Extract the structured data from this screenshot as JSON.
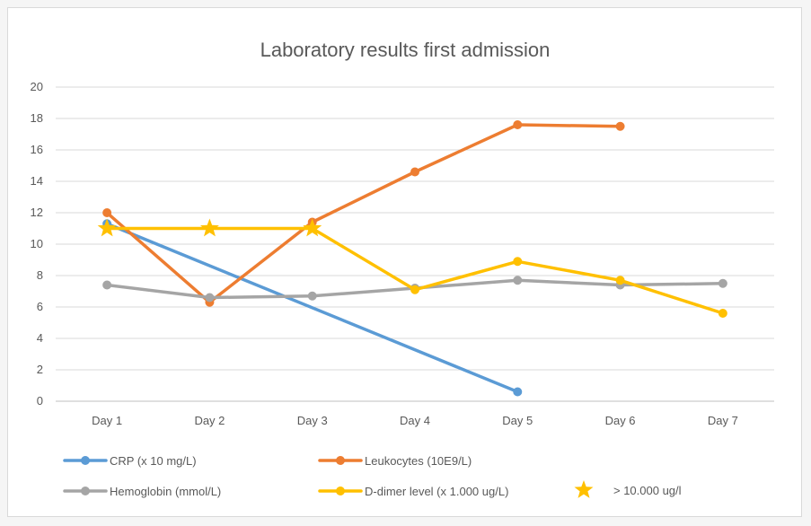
{
  "chart_data": {
    "type": "line",
    "title": "Laboratory results first admission",
    "categories": [
      "Day 1",
      "Day 2",
      "Day 3",
      "Day 4",
      "Day 5",
      "Day 6",
      "Day 7"
    ],
    "ylim": [
      0,
      20
    ],
    "yticks": [
      0,
      2,
      4,
      6,
      8,
      10,
      12,
      14,
      16,
      18,
      20
    ],
    "grid": true,
    "legend_position": "bottom",
    "series": [
      {
        "name": "CRP (x 10 mg/L)",
        "color": "#5b9bd5",
        "values": [
          11.3,
          null,
          null,
          null,
          0.6,
          null,
          null
        ]
      },
      {
        "name": "Leukocytes (10E9/L)",
        "color": "#ed7d31",
        "values": [
          12.0,
          6.3,
          11.4,
          14.6,
          17.6,
          17.5,
          null
        ]
      },
      {
        "name": "Hemoglobin (mmol/L)",
        "color": "#a5a5a5",
        "values": [
          7.4,
          6.6,
          6.7,
          7.2,
          7.7,
          7.4,
          7.5
        ]
      },
      {
        "name": "D-dimer level (x 1.000 ug/L)",
        "color": "#ffc000",
        "values": [
          11.0,
          11.0,
          11.0,
          7.1,
          8.9,
          7.7,
          5.6
        ],
        "star_markers_at": [
          0,
          1,
          2
        ]
      }
    ],
    "star_legend": {
      "label": "> 10.000 ug/l",
      "color": "#ffc000"
    }
  }
}
